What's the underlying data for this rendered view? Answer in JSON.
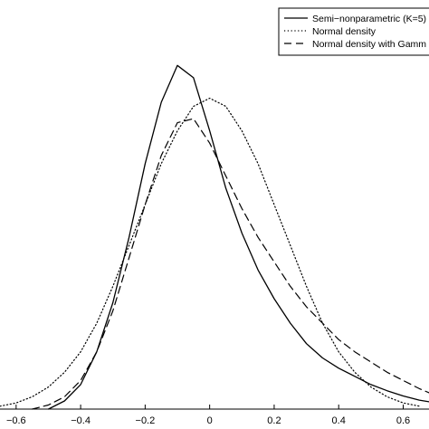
{
  "chart_data": {
    "type": "line",
    "xlim": [
      -0.65,
      0.68
    ],
    "ylim": [
      0,
      1
    ],
    "grid": false,
    "legend": "top-right",
    "x_ticks": [
      -0.6,
      -0.4,
      -0.2,
      0,
      0.2,
      0.4,
      0.6
    ],
    "x_tick_labels": [
      "−0.6",
      "−0.4",
      "−0.2",
      "0",
      "0.2",
      "0.4",
      "0.6"
    ],
    "series": [
      {
        "name": "Semi−nonparametric (K=5)",
        "style": "solid",
        "x": [
          -0.5,
          -0.45,
          -0.4,
          -0.35,
          -0.3,
          -0.25,
          -0.2,
          -0.15,
          -0.1,
          -0.05,
          0,
          0.05,
          0.1,
          0.15,
          0.2,
          0.25,
          0.3,
          0.35,
          0.4,
          0.45,
          0.5,
          0.55,
          0.6,
          0.65,
          0.68
        ],
        "y": [
          0.0,
          0.02,
          0.06,
          0.14,
          0.26,
          0.42,
          0.6,
          0.75,
          0.84,
          0.81,
          0.68,
          0.54,
          0.43,
          0.34,
          0.27,
          0.21,
          0.16,
          0.125,
          0.1,
          0.08,
          0.06,
          0.045,
          0.032,
          0.022,
          0.018
        ]
      },
      {
        "name": "Normal density",
        "style": "dotted",
        "x": [
          -0.65,
          -0.6,
          -0.55,
          -0.5,
          -0.45,
          -0.4,
          -0.35,
          -0.3,
          -0.25,
          -0.2,
          -0.15,
          -0.1,
          -0.05,
          0,
          0.05,
          0.1,
          0.15,
          0.2,
          0.25,
          0.3,
          0.35,
          0.4,
          0.45,
          0.5,
          0.55,
          0.6,
          0.65
        ],
        "y": [
          0.007,
          0.015,
          0.03,
          0.054,
          0.09,
          0.14,
          0.21,
          0.3,
          0.4,
          0.5,
          0.6,
          0.68,
          0.74,
          0.76,
          0.74,
          0.68,
          0.6,
          0.5,
          0.4,
          0.3,
          0.21,
          0.14,
          0.09,
          0.054,
          0.03,
          0.015,
          0.007
        ]
      },
      {
        "name": "Normal density with Gamm",
        "style": "dashed",
        "x": [
          -0.55,
          -0.5,
          -0.45,
          -0.4,
          -0.35,
          -0.3,
          -0.25,
          -0.2,
          -0.15,
          -0.1,
          -0.05,
          0,
          0.05,
          0.1,
          0.15,
          0.2,
          0.25,
          0.3,
          0.35,
          0.4,
          0.45,
          0.5,
          0.55,
          0.6,
          0.65,
          0.68
        ],
        "y": [
          0.0,
          0.01,
          0.03,
          0.07,
          0.14,
          0.24,
          0.37,
          0.5,
          0.62,
          0.7,
          0.71,
          0.65,
          0.57,
          0.49,
          0.42,
          0.36,
          0.3,
          0.25,
          0.21,
          0.17,
          0.14,
          0.115,
          0.09,
          0.07,
          0.05,
          0.04
        ]
      }
    ]
  }
}
